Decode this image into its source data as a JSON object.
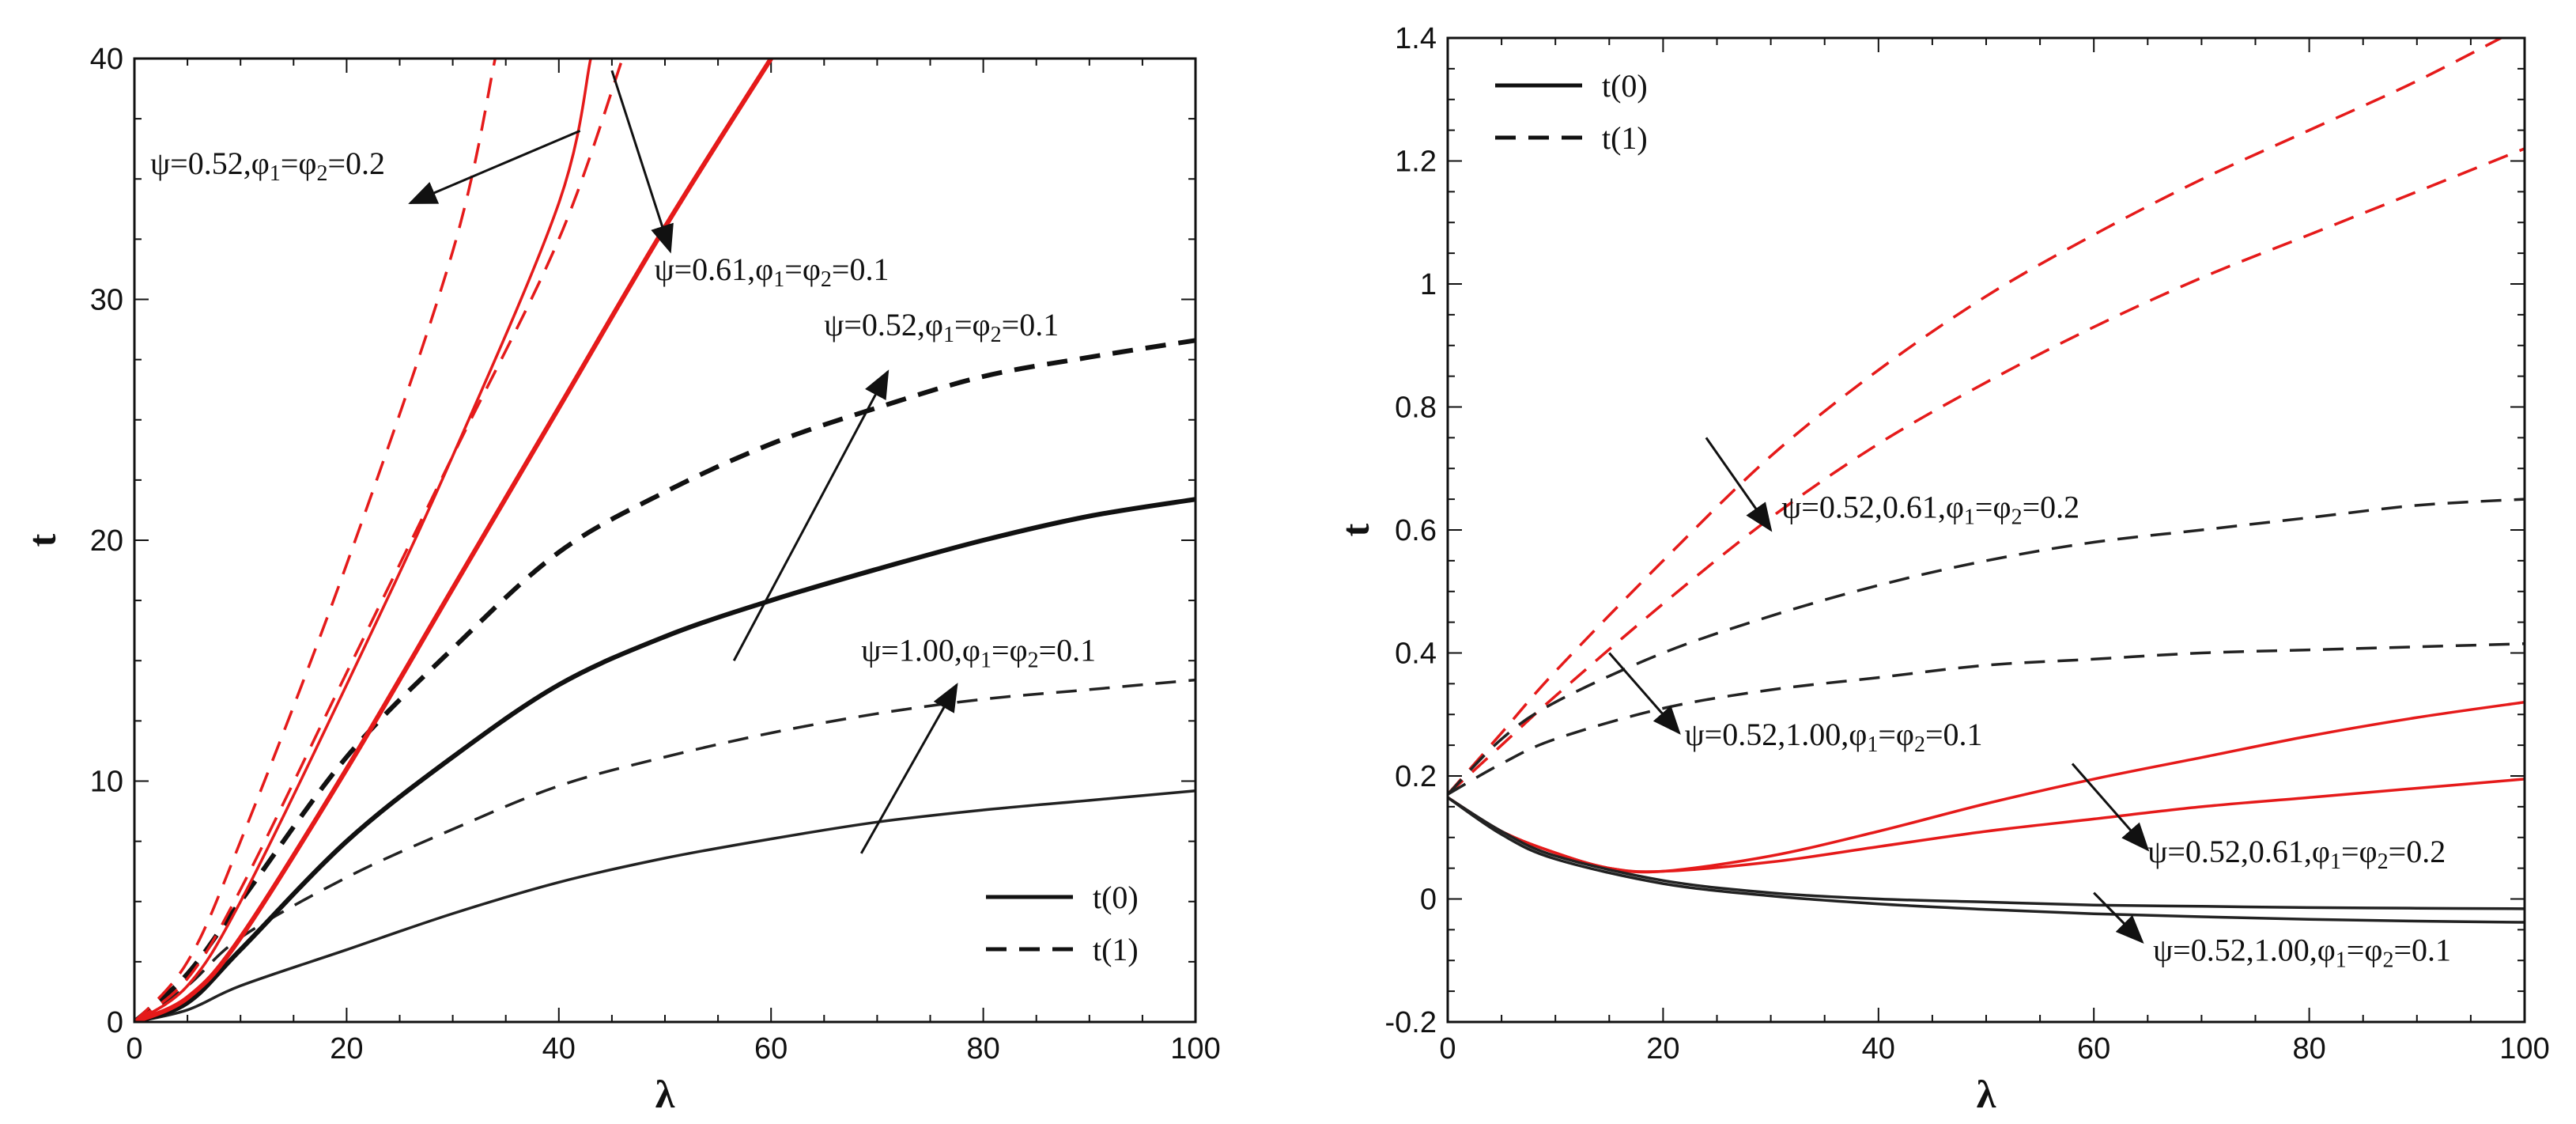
{
  "chart_data": [
    {
      "type": "line",
      "xlabel": "λ",
      "ylabel": "t",
      "xlim": [
        0,
        100
      ],
      "ylim": [
        0,
        40
      ],
      "xticks": [
        "0",
        "20",
        "40",
        "60",
        "80",
        "100"
      ],
      "yticks": [
        "0",
        "10",
        "20",
        "30",
        "40"
      ],
      "legend": {
        "placement": "bottom-right",
        "items": [
          {
            "label": "t(0)",
            "style": "solid"
          },
          {
            "label": "t(1)",
            "style": "dashed"
          }
        ]
      },
      "series": [
        {
          "name": "t(0) ψ=1.00,φ1=φ2=0.1",
          "color": "#222222",
          "style": "solid",
          "width": "thin",
          "x": [
            0,
            5,
            10,
            20,
            30,
            40,
            50,
            60,
            70,
            80,
            90,
            100
          ],
          "y": [
            0,
            0.5,
            1.5,
            3.0,
            4.5,
            5.8,
            6.8,
            7.6,
            8.3,
            8.8,
            9.2,
            9.6
          ]
        },
        {
          "name": "t(1) ψ=1.00,φ1=φ2=0.1",
          "color": "#222222",
          "style": "dashed",
          "width": "thin",
          "x": [
            0,
            5,
            10,
            20,
            30,
            40,
            50,
            60,
            70,
            80,
            90,
            100
          ],
          "y": [
            0,
            1.5,
            3.5,
            6.0,
            8.0,
            9.8,
            11.0,
            12.0,
            12.8,
            13.4,
            13.8,
            14.2
          ]
        },
        {
          "name": "t(0) ψ=0.52,φ1=φ2=0.1",
          "color": "#111111",
          "style": "solid",
          "width": "thick",
          "x": [
            0,
            5,
            10,
            20,
            30,
            40,
            50,
            60,
            70,
            80,
            90,
            100
          ],
          "y": [
            0,
            0.8,
            3.0,
            7.5,
            11.0,
            14.0,
            16.0,
            17.5,
            18.8,
            20.0,
            21.0,
            21.7
          ]
        },
        {
          "name": "t(1) ψ=0.52,φ1=φ2=0.1",
          "color": "#111111",
          "style": "dashed",
          "width": "thick",
          "x": [
            0,
            5,
            10,
            20,
            30,
            40,
            50,
            60,
            70,
            80,
            90,
            100
          ],
          "y": [
            0,
            2.0,
            5.0,
            11.0,
            15.5,
            19.5,
            22.0,
            24.0,
            25.5,
            26.8,
            27.6,
            28.3
          ]
        },
        {
          "name": "t(0) ψ=0.61,φ1=φ2=0.1",
          "color": "#e51a1a",
          "style": "solid",
          "width": "thick",
          "x": [
            0,
            5,
            10,
            20,
            30,
            40,
            50,
            60
          ],
          "y": [
            0,
            1.0,
            3.5,
            10.5,
            18.0,
            25.5,
            33.0,
            40.0
          ]
        },
        {
          "name": "t(0) ψ=0.52,φ1=φ2=0.2",
          "color": "#e51a1a",
          "style": "solid",
          "width": "thin",
          "x": [
            0,
            5,
            10,
            20,
            30,
            40,
            43
          ],
          "y": [
            0,
            1.5,
            5.0,
            14.0,
            23.5,
            34.0,
            40.0
          ]
        },
        {
          "name": "t(1) ψ=0.61,φ1=φ2=0.1",
          "color": "#e51a1a",
          "style": "dashed",
          "width": "thin",
          "x": [
            0,
            5,
            10,
            20,
            30,
            40,
            46
          ],
          "y": [
            0,
            1.8,
            5.5,
            14.5,
            23.5,
            32.5,
            40.0
          ]
        },
        {
          "name": "t(1) ψ=0.52,φ1=φ2=0.2",
          "color": "#e51a1a",
          "style": "dashed",
          "width": "thin",
          "x": [
            0,
            5,
            10,
            20,
            30,
            34
          ],
          "y": [
            0,
            2.5,
            7.5,
            19.0,
            32.0,
            40.0
          ]
        }
      ],
      "annotations": [
        {
          "pre": "ψ=0.52,φ",
          "s1": "1",
          "mid": "=φ",
          "s2": "2",
          "post": "=0.2",
          "x": 1.5,
          "y": 35.2,
          "arrow": [
            [
              42,
              37
            ],
            [
              26,
              34.0
            ]
          ]
        },
        {
          "pre": "ψ=0.61,φ",
          "s1": "1",
          "mid": "=φ",
          "s2": "2",
          "post": "=0.1",
          "x": 49,
          "y": 30.8,
          "arrow": [
            [
              45,
              39.5
            ],
            [
              50.5,
              32.0
            ]
          ]
        },
        {
          "pre": "ψ=0.52,φ",
          "s1": "1",
          "mid": "=φ",
          "s2": "2",
          "post": "=0.1",
          "x": 65,
          "y": 28.5,
          "arrow": [
            [
              56.5,
              15.0
            ],
            [
              71,
              27.0
            ]
          ]
        },
        {
          "pre": "ψ=1.00,φ",
          "s1": "1",
          "mid": "=φ",
          "s2": "2",
          "post": "=0.1",
          "x": 68.5,
          "y": 15.0,
          "arrow": [
            [
              68.5,
              7.0
            ],
            [
              77.5,
              14.0
            ]
          ]
        }
      ]
    },
    {
      "type": "line",
      "xlabel": "λ",
      "ylabel": "t",
      "xlim": [
        0,
        100
      ],
      "ylim": [
        -0.2,
        1.4
      ],
      "xticks": [
        "0",
        "20",
        "40",
        "60",
        "80",
        "100"
      ],
      "yticks": [
        "-0.2",
        "0",
        "0.2",
        "0.4",
        "0.6",
        "0.8",
        "1",
        "1.2",
        "1.4"
      ],
      "legend": {
        "placement": "top-left",
        "items": [
          {
            "label": "t(0)",
            "style": "solid"
          },
          {
            "label": "t(1)",
            "style": "dashed"
          }
        ]
      },
      "series": [
        {
          "name": "t(1) ψ=0.52,φ1=φ2=0.2",
          "color": "#e51a1a",
          "style": "dashed",
          "width": "thin",
          "x": [
            0,
            5,
            10,
            20,
            30,
            40,
            50,
            60,
            70,
            80,
            90,
            100
          ],
          "y": [
            0.17,
            0.27,
            0.37,
            0.55,
            0.72,
            0.86,
            0.98,
            1.08,
            1.17,
            1.25,
            1.33,
            1.42
          ]
        },
        {
          "name": "t(1) ψ=0.61,φ1=φ2=0.2",
          "color": "#e51a1a",
          "style": "dashed",
          "width": "thin",
          "x": [
            0,
            5,
            10,
            20,
            30,
            40,
            50,
            60,
            70,
            80,
            90,
            100
          ],
          "y": [
            0.17,
            0.25,
            0.33,
            0.48,
            0.62,
            0.74,
            0.84,
            0.93,
            1.01,
            1.08,
            1.15,
            1.22
          ]
        },
        {
          "name": "t(1) ψ=0.52,φ1=φ2=0.1",
          "color": "#222222",
          "style": "dashed",
          "width": "thin",
          "x": [
            0,
            5,
            10,
            20,
            30,
            40,
            50,
            60,
            70,
            80,
            90,
            100
          ],
          "y": [
            0.17,
            0.26,
            0.32,
            0.4,
            0.46,
            0.51,
            0.55,
            0.58,
            0.6,
            0.62,
            0.64,
            0.65
          ]
        },
        {
          "name": "t(1) ψ=1.00,φ1=φ2=0.1",
          "color": "#222222",
          "style": "dashed",
          "width": "thin",
          "x": [
            0,
            5,
            10,
            20,
            30,
            40,
            50,
            60,
            70,
            80,
            90,
            100
          ],
          "y": [
            0.17,
            0.22,
            0.26,
            0.31,
            0.34,
            0.36,
            0.38,
            0.39,
            0.4,
            0.405,
            0.41,
            0.415
          ]
        },
        {
          "name": "t(0) ψ=0.52,φ1=φ2=0.2",
          "color": "#e51a1a",
          "style": "solid",
          "width": "thin",
          "x": [
            0,
            5,
            10,
            15,
            20,
            30,
            40,
            50,
            60,
            70,
            80,
            90,
            100
          ],
          "y": [
            0.165,
            0.11,
            0.075,
            0.05,
            0.045,
            0.07,
            0.11,
            0.155,
            0.195,
            0.23,
            0.265,
            0.295,
            0.32
          ]
        },
        {
          "name": "t(0) ψ=0.61,φ1=φ2=0.2",
          "color": "#e51a1a",
          "style": "solid",
          "width": "thin",
          "x": [
            0,
            5,
            10,
            15,
            20,
            30,
            40,
            50,
            60,
            70,
            80,
            90,
            100
          ],
          "y": [
            0.165,
            0.11,
            0.075,
            0.05,
            0.045,
            0.06,
            0.085,
            0.11,
            0.13,
            0.15,
            0.165,
            0.18,
            0.195
          ]
        },
        {
          "name": "t(0) ψ=0.52,φ1=φ2=0.1",
          "color": "#222222",
          "style": "solid",
          "width": "thin",
          "x": [
            0,
            5,
            10,
            20,
            30,
            40,
            50,
            60,
            70,
            80,
            90,
            100
          ],
          "y": [
            0.165,
            0.11,
            0.07,
            0.03,
            0.01,
            0.0,
            -0.005,
            -0.01,
            -0.012,
            -0.014,
            -0.015,
            -0.016
          ]
        },
        {
          "name": "t(0) ψ=1.00,φ1=φ2=0.1",
          "color": "#222222",
          "style": "solid",
          "width": "thin",
          "x": [
            0,
            5,
            10,
            20,
            30,
            40,
            50,
            60,
            70,
            80,
            90,
            100
          ],
          "y": [
            0.165,
            0.105,
            0.065,
            0.025,
            0.005,
            -0.008,
            -0.017,
            -0.024,
            -0.029,
            -0.033,
            -0.036,
            -0.038
          ]
        }
      ],
      "annotations": [
        {
          "pre": "ψ=0.52,0.61,φ",
          "s1": "1",
          "mid": "=φ",
          "s2": "2",
          "post": "=0.2",
          "x": 31,
          "y": 0.62,
          "arrow": [
            [
              24,
              0.75
            ],
            [
              30,
              0.6
            ]
          ]
        },
        {
          "pre": "ψ=0.52,1.00,φ",
          "s1": "1",
          "mid": "=φ",
          "s2": "2",
          "post": "=0.1",
          "x": 22,
          "y": 0.25,
          "arrow": [
            [
              15,
              0.4
            ],
            [
              21.5,
              0.27
            ]
          ]
        },
        {
          "pre": "ψ=0.52,0.61,φ",
          "s1": "1",
          "mid": "=φ",
          "s2": "2",
          "post": "=0.2",
          "x": 65,
          "y": 0.06,
          "arrow": [
            [
              58,
              0.22
            ],
            [
              65,
              0.08
            ]
          ]
        },
        {
          "pre": "ψ=0.52,1.00,φ",
          "s1": "1",
          "mid": "=φ",
          "s2": "2",
          "post": "=0.1",
          "x": 65.5,
          "y": -0.1,
          "arrow": [
            [
              60,
              0.01
            ],
            [
              64.5,
              -0.07
            ]
          ]
        }
      ]
    }
  ]
}
